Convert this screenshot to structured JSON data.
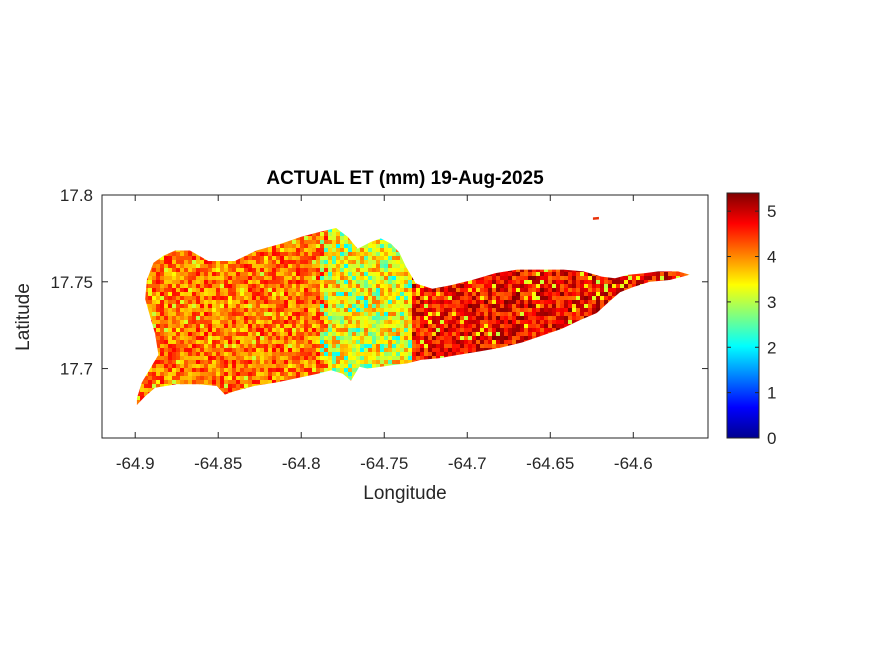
{
  "chart_data": {
    "type": "heatmap",
    "title": "ACTUAL ET (mm) 19-Aug-2025",
    "xlabel": "Longitude",
    "ylabel": "Latitude",
    "xlim": [
      -64.92,
      -64.555
    ],
    "ylim": [
      17.66,
      17.8
    ],
    "x_ticks": [
      -64.9,
      -64.85,
      -64.8,
      -64.75,
      -64.7,
      -64.65,
      -64.6
    ],
    "x_tick_labels": [
      "-64.9",
      "-64.85",
      "-64.8",
      "-64.75",
      "-64.7",
      "-64.65",
      "-64.6"
    ],
    "y_ticks": [
      17.7,
      17.75,
      17.8
    ],
    "y_tick_labels": [
      "17.7",
      "17.75",
      "17.8"
    ],
    "colorbar": {
      "colormap": "jet",
      "range": [
        0,
        5.4
      ],
      "ticks": [
        0,
        1,
        2,
        3,
        4,
        5
      ],
      "tick_labels": [
        "0",
        "1",
        "2",
        "3",
        "4",
        "5"
      ]
    },
    "island_outline_lonlat": [
      [
        -64.899,
        17.679
      ],
      [
        -64.894,
        17.684
      ],
      [
        -64.888,
        17.689
      ],
      [
        -64.875,
        17.691
      ],
      [
        -64.862,
        17.691
      ],
      [
        -64.851,
        17.69
      ],
      [
        -64.846,
        17.685
      ],
      [
        -64.84,
        17.687
      ],
      [
        -64.828,
        17.69
      ],
      [
        -64.815,
        17.692
      ],
      [
        -64.8,
        17.695
      ],
      [
        -64.79,
        17.697
      ],
      [
        -64.782,
        17.699
      ],
      [
        -64.775,
        17.697
      ],
      [
        -64.77,
        17.693
      ],
      [
        -64.765,
        17.701
      ],
      [
        -64.76,
        17.7
      ],
      [
        -64.752,
        17.701
      ],
      [
        -64.745,
        17.702
      ],
      [
        -64.736,
        17.703
      ],
      [
        -64.728,
        17.705
      ],
      [
        -64.717,
        17.706
      ],
      [
        -64.705,
        17.708
      ],
      [
        -64.692,
        17.71
      ],
      [
        -64.68,
        17.712
      ],
      [
        -64.667,
        17.715
      ],
      [
        -64.655,
        17.719
      ],
      [
        -64.643,
        17.723
      ],
      [
        -64.632,
        17.728
      ],
      [
        -64.622,
        17.732
      ],
      [
        -64.614,
        17.739
      ],
      [
        -64.608,
        17.744
      ],
      [
        -64.6,
        17.747
      ],
      [
        -64.59,
        17.75
      ],
      [
        -64.578,
        17.751
      ],
      [
        -64.566,
        17.754
      ],
      [
        -64.573,
        17.756
      ],
      [
        -64.585,
        17.756
      ],
      [
        -64.593,
        17.755
      ],
      [
        -64.603,
        17.754
      ],
      [
        -64.611,
        17.752
      ],
      [
        -64.619,
        17.753
      ],
      [
        -64.63,
        17.756
      ],
      [
        -64.642,
        17.757
      ],
      [
        -64.655,
        17.757
      ],
      [
        -64.67,
        17.757
      ],
      [
        -64.683,
        17.755
      ],
      [
        -64.697,
        17.751
      ],
      [
        -64.71,
        17.748
      ],
      [
        -64.721,
        17.746
      ],
      [
        -64.731,
        17.749
      ],
      [
        -64.737,
        17.759
      ],
      [
        -64.741,
        17.767
      ],
      [
        -64.746,
        17.772
      ],
      [
        -64.752,
        17.775
      ],
      [
        -64.758,
        17.773
      ],
      [
        -64.766,
        17.769
      ],
      [
        -64.772,
        17.776
      ],
      [
        -64.779,
        17.781
      ],
      [
        -64.788,
        17.779
      ],
      [
        -64.8,
        17.776
      ],
      [
        -64.812,
        17.772
      ],
      [
        -64.827,
        17.768
      ],
      [
        -64.84,
        17.762
      ],
      [
        -64.856,
        17.762
      ],
      [
        -64.867,
        17.768
      ],
      [
        -64.876,
        17.768
      ],
      [
        -64.883,
        17.765
      ],
      [
        -64.889,
        17.761
      ],
      [
        -64.893,
        17.751
      ],
      [
        -64.894,
        17.74
      ],
      [
        -64.891,
        17.73
      ],
      [
        -64.888,
        17.72
      ],
      [
        -64.886,
        17.708
      ],
      [
        -64.891,
        17.7
      ],
      [
        -64.896,
        17.692
      ],
      [
        -64.899,
        17.683
      ]
    ],
    "islet_lonlat": [
      -64.6225,
      17.7865
    ],
    "value_zones": [
      {
        "name": "west",
        "lon_range": [
          -64.9,
          -64.785
        ],
        "mean": 4.15
      },
      {
        "name": "central",
        "lon_range": [
          -64.785,
          -64.735
        ],
        "mean": 3.55
      },
      {
        "name": "east",
        "lon_range": [
          -64.735,
          -64.57
        ],
        "mean": 4.7
      }
    ]
  }
}
